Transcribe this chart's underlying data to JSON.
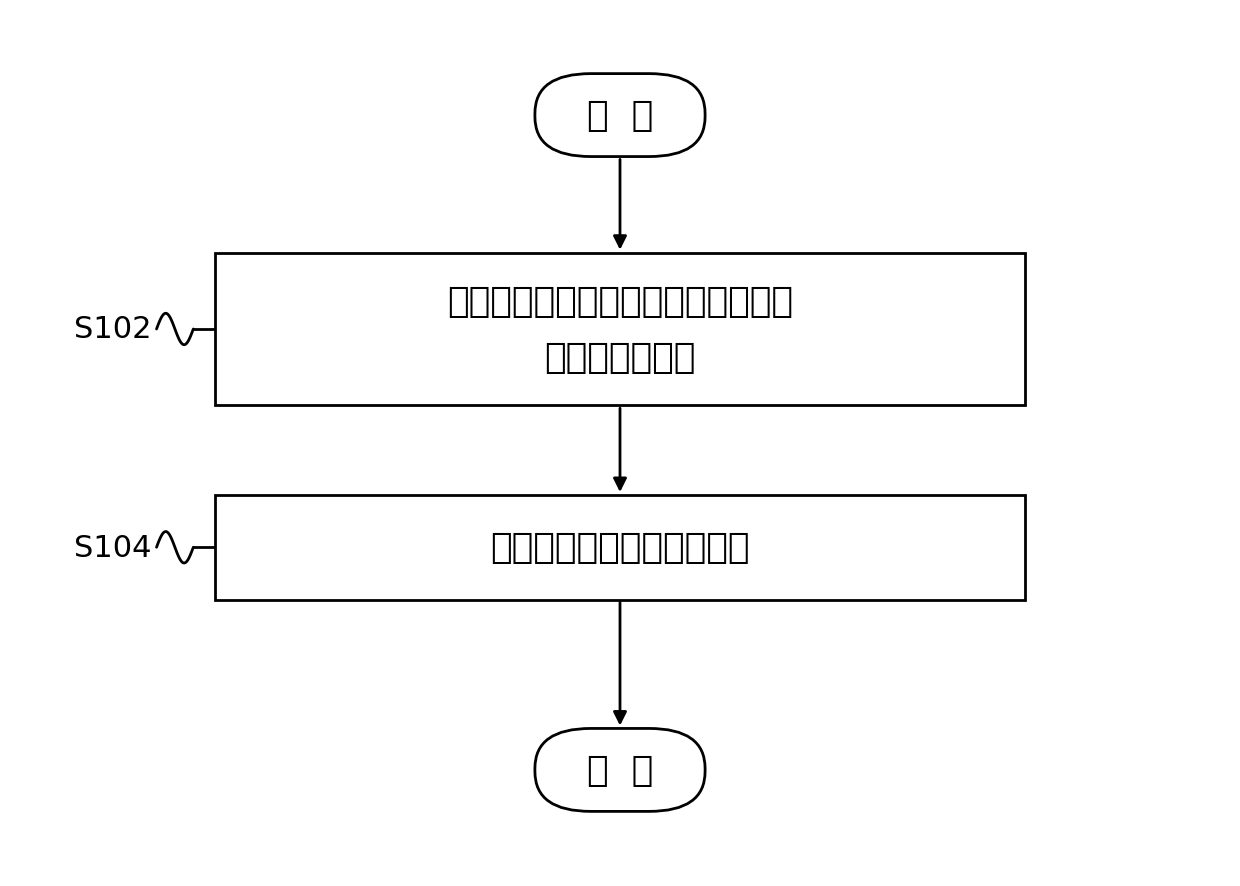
{
  "bg_color": "#ffffff",
  "border_color": "#000000",
  "text_color": "#000000",
  "arrow_color": "#000000",
  "start_text": "开  始",
  "end_text": "结  束",
  "box1_line1": "根据测试指令获取测试数据存储区中",
  "box1_line2": "存储的模拟数据",
  "box2_text": "通过模拟数据执行测试操作",
  "label1": "S102",
  "label2": "S104",
  "fig_w": 12.4,
  "fig_h": 8.87,
  "dpi": 100,
  "line_width": 2.0,
  "font_size_box": 26,
  "font_size_startend": 26,
  "font_size_label": 22
}
